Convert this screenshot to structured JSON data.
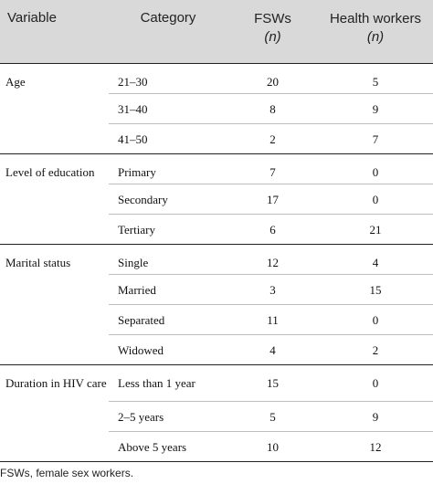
{
  "headers": {
    "variable": "Variable",
    "category": "Category",
    "fsws": "FSWs",
    "fsws_unit": "(n)",
    "health_workers": "Health workers",
    "health_workers_unit": "(n)"
  },
  "rows": [
    {
      "variable": "Age",
      "category": "21–30",
      "fsws": "20",
      "health_workers": "5"
    },
    {
      "variable": "",
      "category": "31–40",
      "fsws": "8",
      "health_workers": "9"
    },
    {
      "variable": "",
      "category": "41–50",
      "fsws": "2",
      "health_workers": "7"
    },
    {
      "variable": "Level of education",
      "category": "Primary",
      "fsws": "7",
      "health_workers": "0"
    },
    {
      "variable": "",
      "category": "Secondary",
      "fsws": "17",
      "health_workers": "0"
    },
    {
      "variable": "",
      "category": "Tertiary",
      "fsws": "6",
      "health_workers": "21"
    },
    {
      "variable": "Marital status",
      "category": "Single",
      "fsws": "12",
      "health_workers": "4"
    },
    {
      "variable": "",
      "category": "Married",
      "fsws": "3",
      "health_workers": "15"
    },
    {
      "variable": "",
      "category": "Separated",
      "fsws": "11",
      "health_workers": "0"
    },
    {
      "variable": "",
      "category": "Widowed",
      "fsws": "4",
      "health_workers": "2"
    },
    {
      "variable": "Duration in HIV care",
      "category": "Less than 1 year",
      "fsws": "15",
      "health_workers": "0"
    },
    {
      "variable": "",
      "category": "2–5 years",
      "fsws": "5",
      "health_workers": "9"
    },
    {
      "variable": "",
      "category": "Above 5 years",
      "fsws": "10",
      "health_workers": "12"
    }
  ],
  "footnote": "FSWs, female sex workers."
}
